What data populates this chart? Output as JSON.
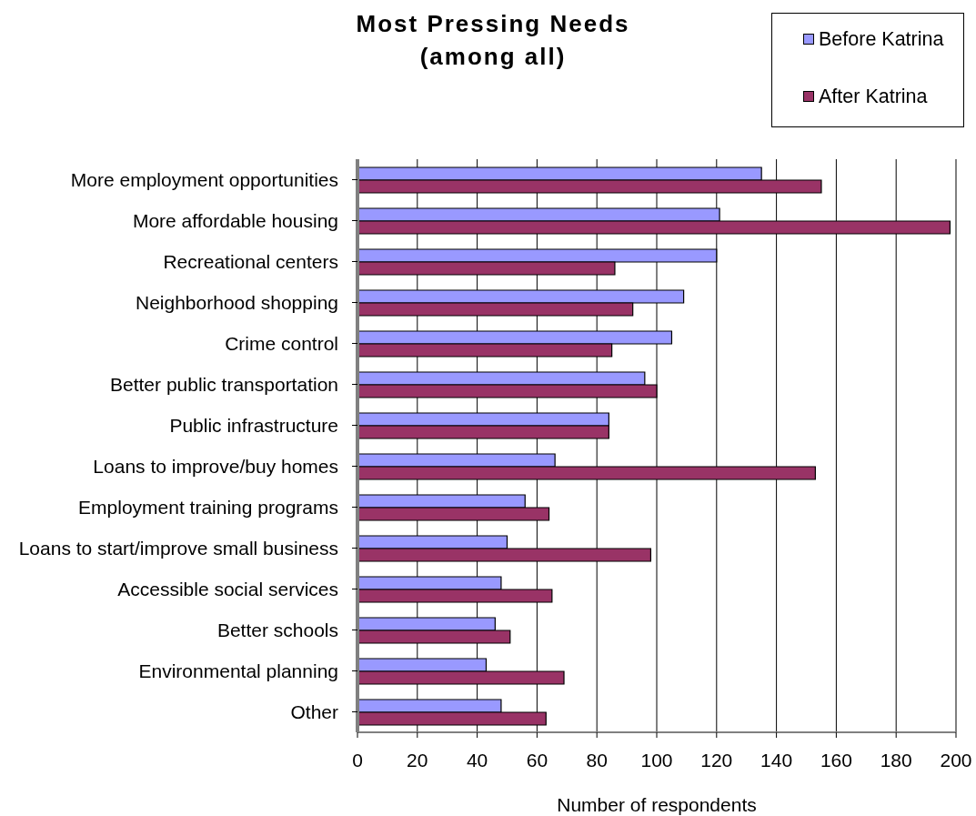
{
  "chart_data": {
    "type": "bar",
    "title": "Most Pressing Needs",
    "subtitle": "(among all)",
    "xlabel": "Number of respondents",
    "orientation": "horizontal",
    "categories": [
      "More employment opportunities",
      "More affordable housing",
      "Recreational centers",
      "Neighborhood shopping",
      "Crime control",
      "Better public transportation",
      "Public infrastructure",
      "Loans to improve/buy homes",
      "Employment training programs",
      "Loans to start/improve small business",
      "Accessible social services",
      "Better schools",
      "Environmental planning",
      "Other"
    ],
    "series": [
      {
        "name": "Before Katrina",
        "color": "#9999ff",
        "values": [
          135,
          121,
          120,
          109,
          105,
          96,
          84,
          66,
          56,
          50,
          48,
          46,
          43,
          48
        ]
      },
      {
        "name": "After Katrina",
        "color": "#993366",
        "values": [
          155,
          198,
          86,
          92,
          85,
          100,
          84,
          153,
          64,
          98,
          65,
          51,
          69,
          63
        ]
      }
    ],
    "xlim": [
      0,
      200
    ],
    "xticks": [
      0,
      20,
      40,
      60,
      80,
      100,
      120,
      140,
      160,
      180,
      200
    ],
    "grid": "x",
    "legend": "top right"
  }
}
